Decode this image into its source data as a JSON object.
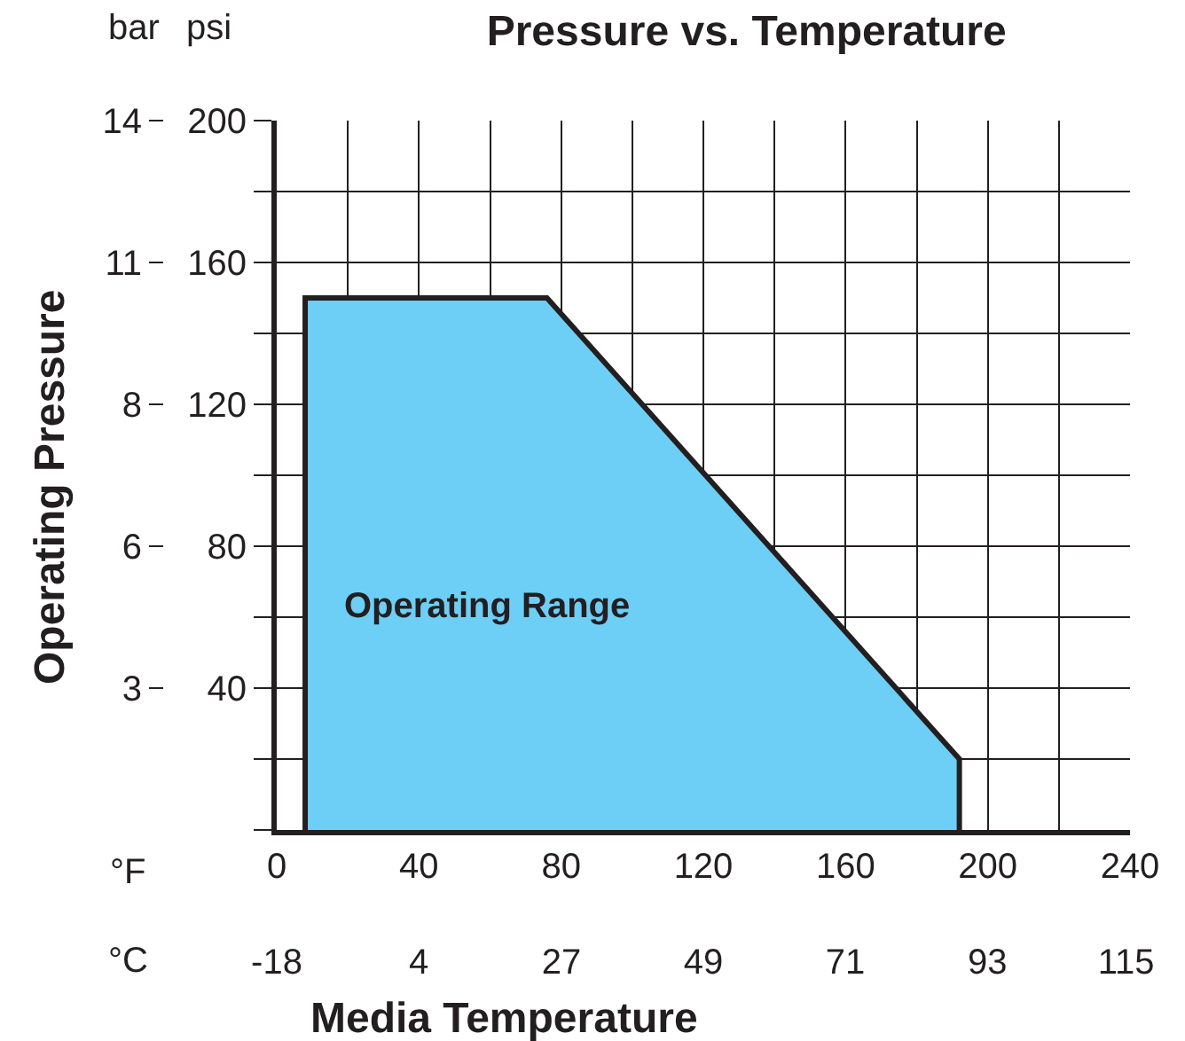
{
  "chart_data": {
    "type": "area",
    "title": "Pressure vs. Temperature",
    "xlabel": "Media Temperature",
    "y2label": "Operating Pressure",
    "x": [
      8,
      8,
      76,
      192,
      192
    ],
    "series": [
      {
        "color": "#6dcff6",
        "values": [
          0,
          150,
          150,
          20,
          0
        ]
      }
    ],
    "xlim": [
      0,
      240
    ],
    "xticks": [
      0,
      {
        "value": 20,
        "label": null
      },
      40,
      {
        "value": 60,
        "label": null
      },
      80,
      {
        "value": 100,
        "label": null
      },
      120,
      {
        "value": 140,
        "label": null
      },
      160,
      {
        "value": 180,
        "label": null
      },
      200,
      {
        "value": 220,
        "label": null
      },
      240
    ],
    "ylim": [
      0,
      200
    ],
    "yticks": [
      {
        "value": 0,
        "label": null
      },
      {
        "value": 20,
        "label": null
      },
      40,
      {
        "value": 60,
        "label": null
      },
      80,
      {
        "value": 100,
        "label": null
      },
      120,
      {
        "value": 140,
        "label": null
      },
      160,
      {
        "value": 180,
        "label": null
      },
      200
    ],
    "x2lim": [
      -17.8,
      115.6
    ],
    "x2ticks": [
      {
        "value": -17.8,
        "label": "-18"
      },
      {
        "value": 4.4,
        "label": "4"
      },
      {
        "value": 26.7,
        "label": "27"
      },
      {
        "value": 48.9,
        "label": "49"
      },
      {
        "value": 71.1,
        "label": "71"
      },
      {
        "value": 93.3,
        "label": "93"
      },
      115
    ],
    "y2lim": [
      0,
      13.79
    ],
    "y2ticks": [
      {
        "value": 2.76,
        "label": "3"
      },
      {
        "value": 5.52,
        "label": "6"
      },
      {
        "value": 8.27,
        "label": "8"
      },
      {
        "value": 11.03,
        "label": "11"
      },
      {
        "value": 13.79,
        "label": "14"
      }
    ],
    "annotations": [
      "bar",
      "psi",
      "°F",
      "°C",
      "Operating Range"
    ],
    "grid": true
  }
}
